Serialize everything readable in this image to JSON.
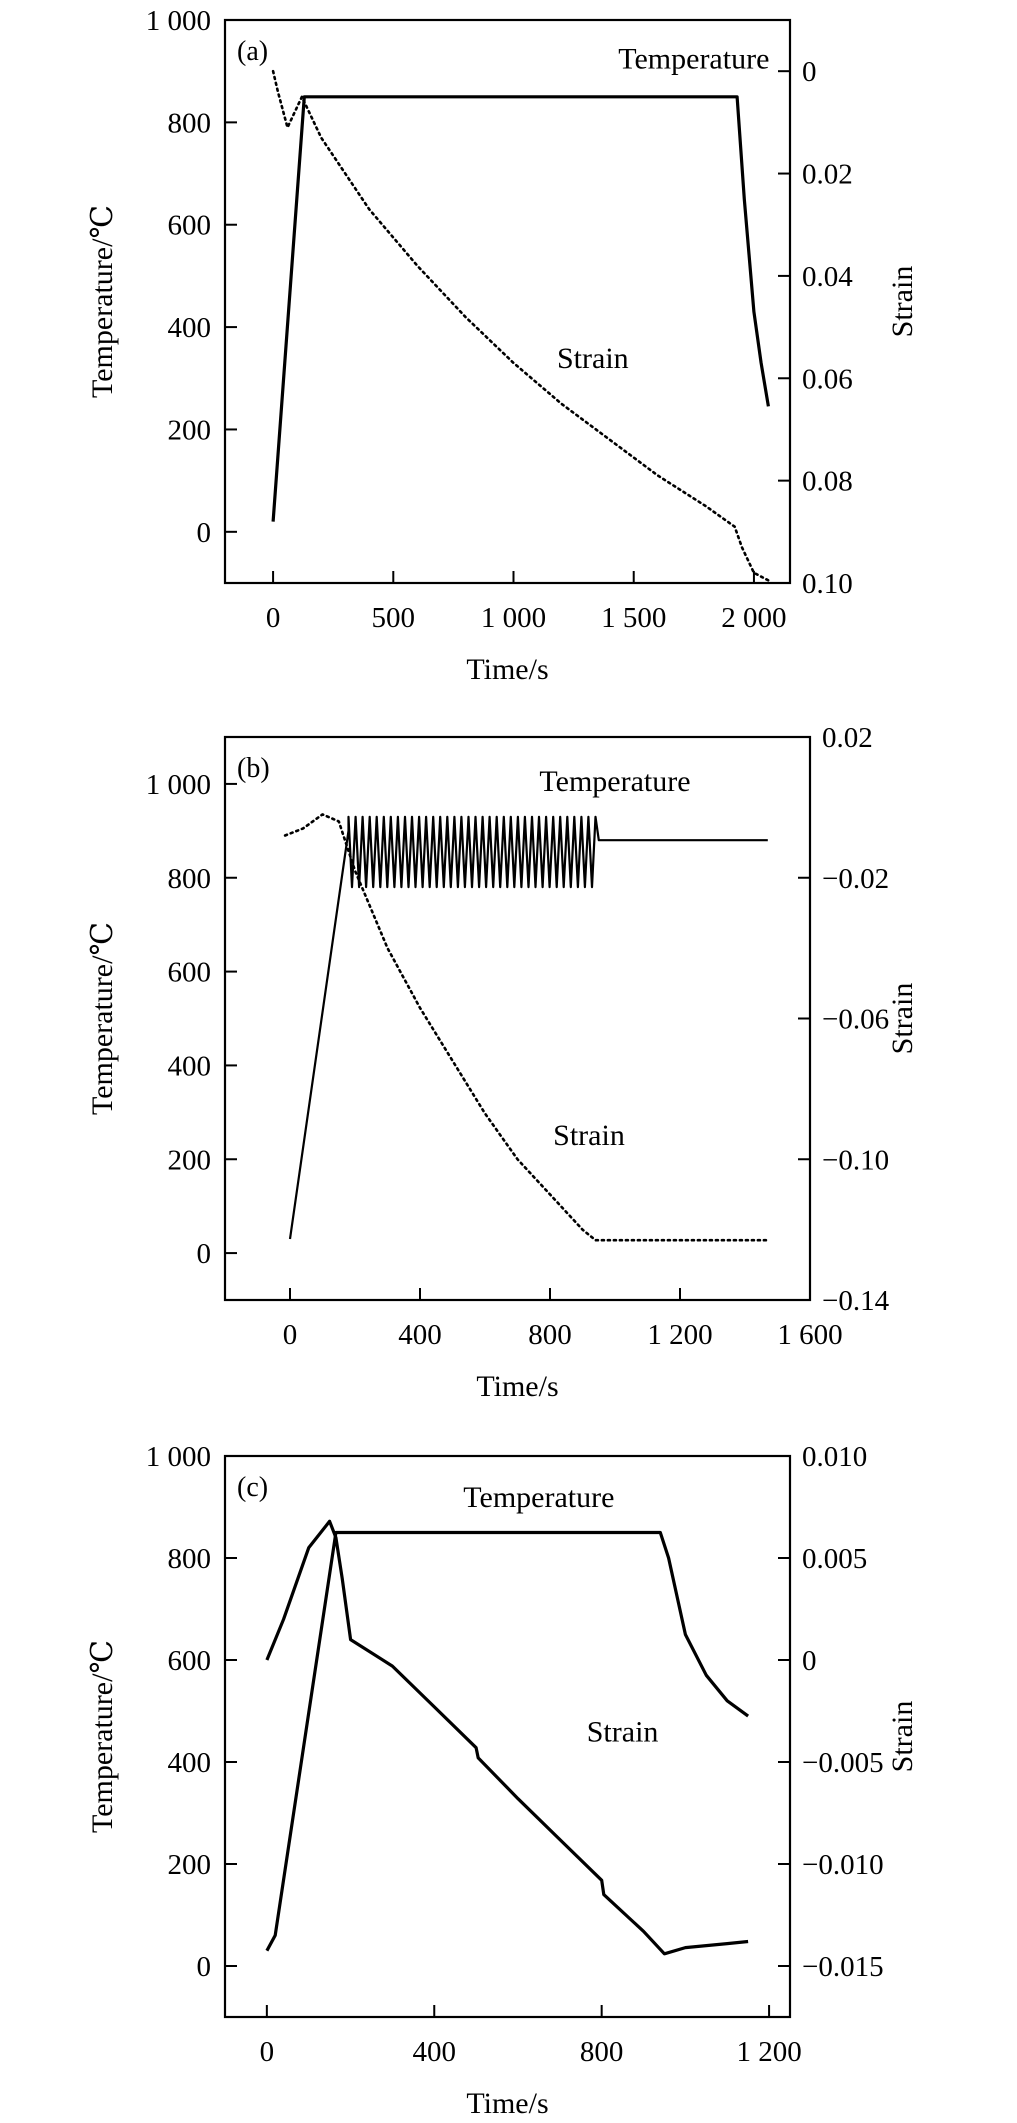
{
  "chart_data": [
    {
      "type": "line",
      "panel_label": "(a)",
      "xlabel": "Time/s",
      "ylabel": "Temperature/℃",
      "ylabel_right": "Strain",
      "xlim": [
        -200,
        2150
      ],
      "ylim": [
        -100,
        1000
      ],
      "y2lim": [
        0.1,
        -0.01
      ],
      "x_ticks": [
        0,
        500,
        1000,
        1500,
        2000
      ],
      "x_tick_labels": [
        "0",
        "500",
        "1 000",
        "1 500",
        "2 000"
      ],
      "y_ticks": [
        0,
        200,
        400,
        600,
        800,
        1000
      ],
      "y_tick_labels": [
        "0",
        "200",
        "400",
        "600",
        "800",
        "1 000"
      ],
      "y2_ticks": [
        0,
        0.02,
        0.04,
        0.06,
        0.08,
        0.1
      ],
      "y2_tick_labels": [
        "0",
        "0.02",
        "0.04",
        "0.06",
        "0.08",
        "0.10"
      ],
      "series": [
        {
          "name": "Temperature",
          "axis": "left",
          "style": "solid",
          "label_at": [
            1750,
            905
          ],
          "x": [
            0,
            130,
            1930,
            1960,
            2000,
            2030,
            2060
          ],
          "y": [
            20,
            850,
            850,
            650,
            430,
            330,
            245
          ]
        },
        {
          "name": "Strain",
          "axis": "right",
          "style": "dotted",
          "label_at": [
            1330,
            320
          ],
          "x": [
            0,
            20,
            60,
            120,
            200,
            400,
            600,
            800,
            1000,
            1200,
            1400,
            1600,
            1800,
            1920,
            1950,
            2000,
            2060
          ],
          "y": [
            0.0,
            0.004,
            0.011,
            0.005,
            0.013,
            0.027,
            0.038,
            0.048,
            0.057,
            0.065,
            0.072,
            0.079,
            0.085,
            0.089,
            0.093,
            0.098,
            0.0995
          ]
        }
      ]
    },
    {
      "type": "line",
      "panel_label": "(b)",
      "xlabel": "Time/s",
      "ylabel": "Temperature/℃",
      "ylabel_right": "Strain",
      "xlim": [
        -200,
        1600
      ],
      "ylim": [
        -100,
        1100
      ],
      "y2lim": [
        -0.14,
        0.02
      ],
      "x_ticks": [
        0,
        400,
        800,
        1200,
        1600
      ],
      "x_tick_labels": [
        "0",
        "400",
        "800",
        "1 200",
        "1 600"
      ],
      "y_ticks": [
        0,
        200,
        400,
        600,
        800,
        1000
      ],
      "y_tick_labels": [
        "0",
        "200",
        "400",
        "600",
        "800",
        "1 000"
      ],
      "y2_ticks": [
        -0.14,
        -0.1,
        -0.06,
        -0.02,
        0.02
      ],
      "y2_tick_labels": [
        "−0.14",
        "−0.10",
        "−0.06",
        "−0.02",
        "0.02"
      ],
      "series": [
        {
          "name": "Temperature",
          "axis": "left",
          "style": "solid",
          "oscillation": {
            "t_start": 180,
            "t_end": 940,
            "low": 780,
            "high": 930,
            "cycles": 35
          },
          "label_at": [
            1000,
            985
          ],
          "x": [
            0,
            180,
            940,
            950,
            1470
          ],
          "y": [
            30,
            900,
            860,
            880,
            880
          ]
        },
        {
          "name": "Strain",
          "axis": "right",
          "style": "dotted",
          "label_at": [
            920,
            230
          ],
          "x": [
            -15,
            40,
            100,
            150,
            200,
            300,
            400,
            500,
            600,
            700,
            800,
            900,
            940,
            1000,
            1200,
            1470
          ],
          "y": [
            -0.008,
            -0.006,
            -0.002,
            -0.004,
            -0.018,
            -0.04,
            -0.057,
            -0.072,
            -0.087,
            -0.1,
            -0.11,
            -0.12,
            -0.123,
            -0.123,
            -0.123,
            -0.123
          ]
        }
      ]
    },
    {
      "type": "line",
      "panel_label": "(c)",
      "xlabel": "Time/s",
      "ylabel": "Temperature/℃",
      "ylabel_right": "Strain",
      "xlim": [
        -100,
        1250
      ],
      "ylim": [
        -100,
        1000
      ],
      "y2lim": [
        -0.0175,
        0.01
      ],
      "x_ticks": [
        0,
        400,
        800,
        1200
      ],
      "x_tick_labels": [
        "0",
        "400",
        "800",
        "1 200"
      ],
      "y_ticks": [
        0,
        200,
        400,
        600,
        800,
        1000
      ],
      "y_tick_labels": [
        "0",
        "200",
        "400",
        "600",
        "800",
        "1 000"
      ],
      "y2_ticks": [
        -0.015,
        -0.01,
        -0.005,
        0,
        0.005,
        0.01
      ],
      "y2_tick_labels": [
        "−0.015",
        "−0.010",
        "−0.005",
        "0",
        "0.005",
        "0.010"
      ],
      "series": [
        {
          "name": "Temperature",
          "axis": "left",
          "style": "solid",
          "label_at": [
            650,
            900
          ],
          "x": [
            0,
            20,
            165,
            180,
            940,
            960,
            1000,
            1050,
            1100,
            1150
          ],
          "y": [
            30,
            60,
            850,
            850,
            850,
            800,
            650,
            570,
            520,
            490
          ]
        },
        {
          "name": "Strain",
          "axis": "right",
          "style": "solid",
          "label_at": [
            850,
            440
          ],
          "x": [
            0,
            40,
            100,
            150,
            165,
            180,
            200,
            300,
            400,
            500,
            505,
            600,
            700,
            800,
            805,
            900,
            950,
            1000,
            1100,
            1150
          ],
          "y": [
            0.0,
            0.002,
            0.0055,
            0.0068,
            0.006,
            0.004,
            0.001,
            -0.0003,
            -0.0023,
            -0.0043,
            -0.0048,
            -0.0068,
            -0.0088,
            -0.0108,
            -0.0115,
            -0.0133,
            -0.0144,
            -0.0141,
            -0.0139,
            -0.0138
          ]
        }
      ]
    }
  ]
}
